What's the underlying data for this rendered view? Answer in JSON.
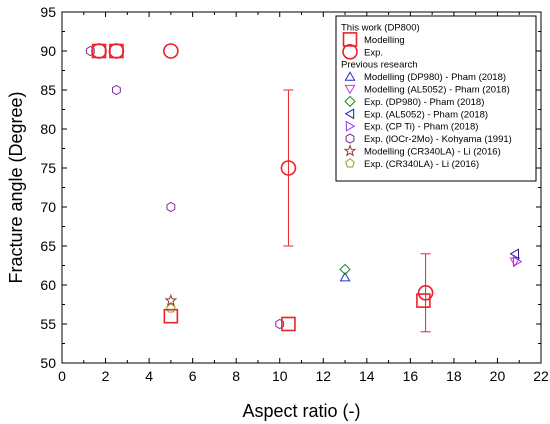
{
  "chart_data": {
    "type": "scatter",
    "xlabel": "Aspect ratio (-)",
    "ylabel": "Fracture angle (Degree)",
    "xlim": [
      0,
      22
    ],
    "ylim": [
      50,
      95
    ],
    "xticks": [
      "0",
      "2",
      "4",
      "6",
      "8",
      "10",
      "12",
      "14",
      "16",
      "18",
      "20",
      "22"
    ],
    "yticks": [
      "50",
      "55",
      "60",
      "65",
      "70",
      "75",
      "80",
      "85",
      "90",
      "95"
    ],
    "grid": false,
    "legend_position": "top-right",
    "legend_headers": [
      "This work (DP800)",
      "Previous research"
    ],
    "series": [
      {
        "name": "Modelling",
        "marker": "square",
        "color": "#e8232a",
        "size": "large",
        "group": 0,
        "points": [
          [
            1.7,
            90
          ],
          [
            2.5,
            90
          ],
          [
            5,
            56
          ],
          [
            10.4,
            55
          ],
          [
            16.6,
            58
          ]
        ]
      },
      {
        "name": "Exp.",
        "marker": "circle",
        "color": "#e8232a",
        "size": "large",
        "group": 0,
        "points": [
          [
            1.7,
            90
          ],
          [
            2.5,
            90
          ],
          [
            5,
            90
          ],
          [
            10.4,
            75
          ],
          [
            16.7,
            59
          ]
        ],
        "error_bars": [
          null,
          null,
          null,
          [
            65,
            85
          ],
          [
            54,
            64
          ]
        ]
      },
      {
        "name": "Modelling (DP980) - Pham (2018)",
        "marker": "triangle-up",
        "color": "#2233cc",
        "size": "small",
        "group": 1,
        "points": [
          [
            13,
            61
          ]
        ]
      },
      {
        "name": "Modelling (AL5052) - Pham (2018)",
        "marker": "triangle-down",
        "color": "#d633d6",
        "size": "small",
        "group": 1,
        "points": [
          [
            20.8,
            63
          ]
        ]
      },
      {
        "name": "Exp. (DP980) - Pham (2018)",
        "marker": "diamond",
        "color": "#1a8a1a",
        "size": "small",
        "group": 1,
        "points": [
          [
            13,
            62
          ]
        ]
      },
      {
        "name": "Exp. (AL5052) - Pham (2018)",
        "marker": "triangle-left",
        "color": "#1a1a99",
        "size": "small",
        "group": 1,
        "points": [
          [
            20.8,
            64
          ]
        ]
      },
      {
        "name": "Exp. (CP Ti) - Pham (2018)",
        "marker": "triangle-right",
        "color": "#9933ee",
        "size": "small",
        "group": 1,
        "points": [
          [
            20.9,
            63
          ]
        ]
      },
      {
        "name": "Exp. (lOCr-2Mo) - Kohyama (1991)",
        "marker": "hexagon",
        "color": "#7a2a9a",
        "size": "small",
        "group": 1,
        "points": [
          [
            1.3,
            90
          ],
          [
            2.5,
            85
          ],
          [
            5,
            70
          ],
          [
            10,
            55
          ]
        ]
      },
      {
        "name": "Modelling (CR340LA) - Li (2016)",
        "marker": "star",
        "color": "#8b3a2a",
        "size": "small",
        "group": 1,
        "points": [
          [
            5,
            58
          ]
        ]
      },
      {
        "name": "Exp. (CR340LA) - Li (2016)",
        "marker": "pentagon",
        "color": "#999922",
        "size": "small",
        "group": 1,
        "points": [
          [
            5,
            57
          ]
        ]
      }
    ]
  }
}
